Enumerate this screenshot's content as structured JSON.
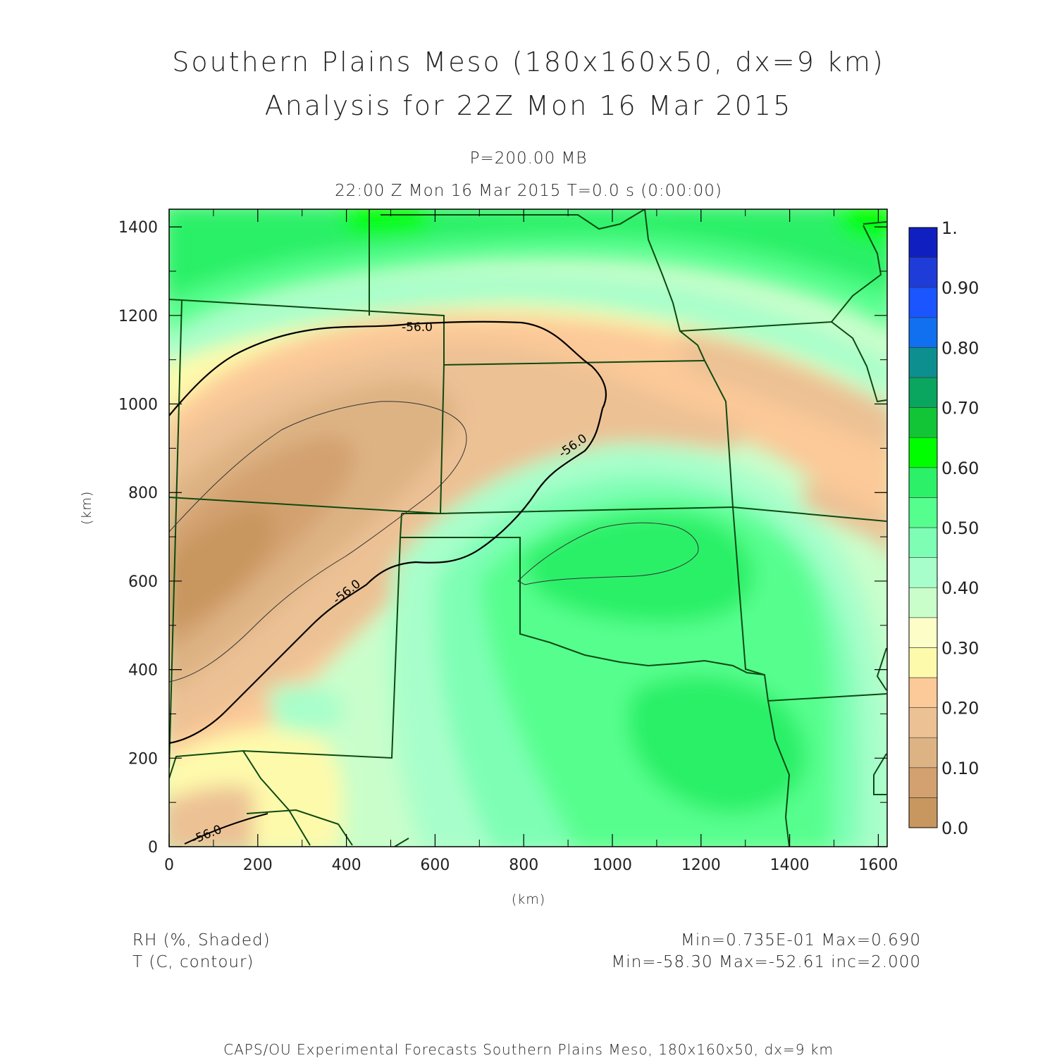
{
  "title": {
    "line1": "Southern Plains Meso (180x160x50, dx=9 km)",
    "line2": "Analysis for 22Z Mon 16 Mar 2015"
  },
  "subtitle": {
    "pressure": "P=200.00 MB",
    "time": "22:00 Z Mon 16 Mar 2015    T=0.0 s (0:00:00)"
  },
  "axes": {
    "xlabel": "(km)",
    "ylabel": "(km)",
    "xticks": [
      "0",
      "200",
      "400",
      "600",
      "800",
      "1000",
      "1200",
      "1400",
      "1600"
    ],
    "yticks": [
      "0",
      "200",
      "400",
      "600",
      "800",
      "1000",
      "1200",
      "1400"
    ]
  },
  "colorbar": {
    "labels": [
      "1.",
      "0.90",
      "0.80",
      "0.70",
      "0.60",
      "0.50",
      "0.40",
      "0.30",
      "0.20",
      "0.10",
      "0.0"
    ],
    "colors": [
      "#c8965f",
      "#d3a170",
      "#deb384",
      "#ecc194",
      "#fcc998",
      "#fefaac",
      "#fdfdc7",
      "#c9fecb",
      "#a8feca",
      "#7efeb5",
      "#56fe8e",
      "#2cf067",
      "#00fe00",
      "#12c536",
      "#0aa55e",
      "#0e8f8f",
      "#1070f0",
      "#1a55ff",
      "#1e3cd8",
      "#1020c0"
    ]
  },
  "contour_labels": [
    "-56.0",
    "-56.0",
    "-56.0",
    "-56.0"
  ],
  "legend": {
    "field1": "RH (%, Shaded)",
    "field2": "T (C, contour)",
    "stats1": "Min=0.735E-01 Max=0.690",
    "stats2": "Min=-58.30 Max=-52.61 inc=2.000"
  },
  "footer": "CAPS/OU Experimental Forecasts  Southern Plains Meso, 180x160x50, dx=9 km"
}
